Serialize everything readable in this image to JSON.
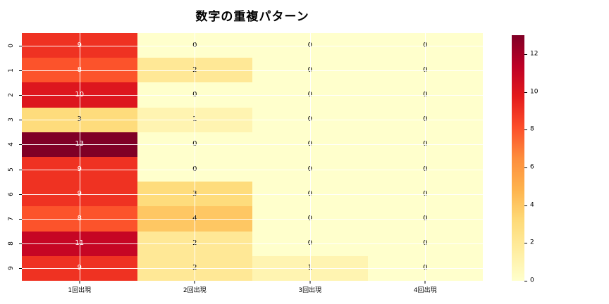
{
  "title": "数字の重複パターン",
  "background_color": "#ffffff",
  "chart_data": {
    "type": "heatmap",
    "title": "数字の重複パターン",
    "row_labels": [
      "0",
      "1",
      "2",
      "3",
      "4",
      "5",
      "6",
      "7",
      "8",
      "9"
    ],
    "column_labels": [
      "1回出現",
      "2回出現",
      "3回出現",
      "4回出現"
    ],
    "matrix": [
      [
        9,
        0,
        0,
        0
      ],
      [
        8,
        2,
        0,
        0
      ],
      [
        10,
        0,
        0,
        0
      ],
      [
        3,
        1,
        0,
        0
      ],
      [
        13,
        0,
        0,
        0
      ],
      [
        9,
        0,
        0,
        0
      ],
      [
        9,
        3,
        0,
        0
      ],
      [
        8,
        4,
        0,
        0
      ],
      [
        11,
        2,
        0,
        0
      ],
      [
        9,
        2,
        1,
        0
      ]
    ],
    "vmin": 0,
    "vmax": 13,
    "colormap": "YlOrRd",
    "colormap_stops": [
      "#ffffcc",
      "#ffeda0",
      "#fed976",
      "#feb24c",
      "#fd8d3c",
      "#fc4e2a",
      "#e31a1c",
      "#bd0026",
      "#800026"
    ],
    "annotation_color_light_cell": "#000000",
    "annotation_color_dark_cell": "#ffffff",
    "gridlines": "white lines at row/column centers",
    "colorbar_ticks": [
      0,
      2,
      4,
      6,
      8,
      10,
      12
    ],
    "legend_position": "right-colorbar"
  }
}
